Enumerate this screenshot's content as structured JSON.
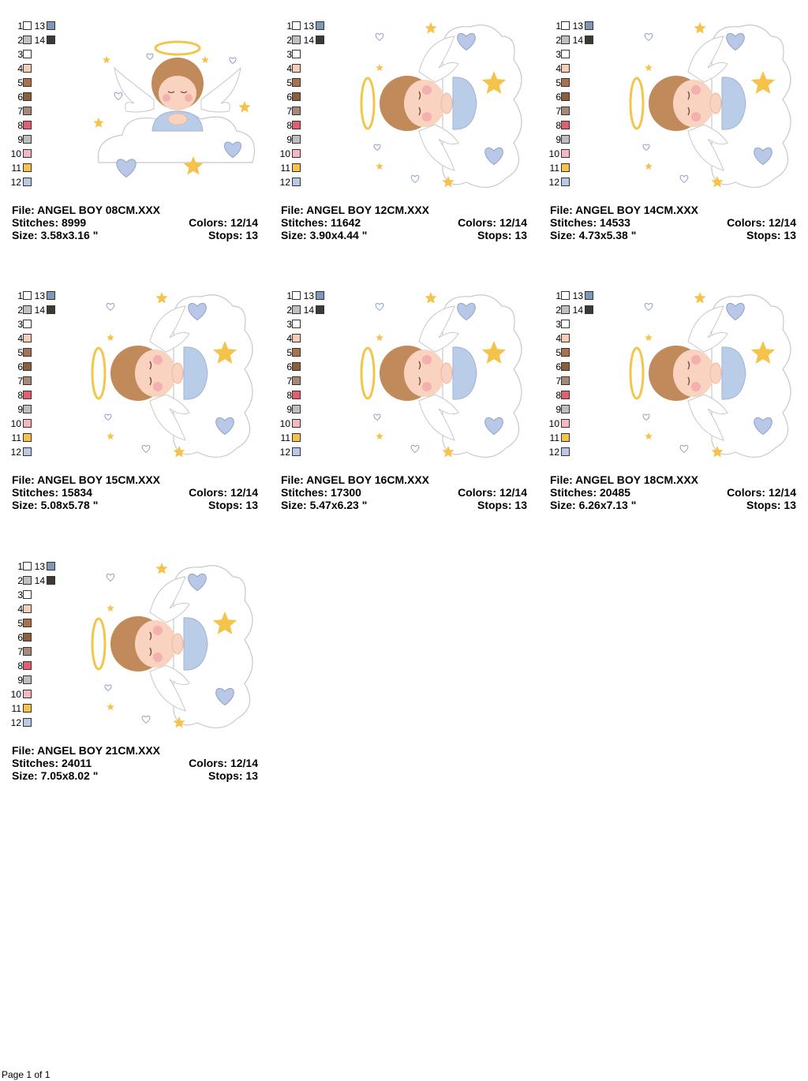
{
  "labels": {
    "file": "File: ",
    "stitches": "Stitches: ",
    "size": "Size: ",
    "colors": "Colors: ",
    "stops": "Stops: "
  },
  "palette": [
    {
      "n": "1",
      "color": "#ffffff"
    },
    {
      "n": "2",
      "color": "#c0c0c0"
    },
    {
      "n": "3",
      "color": "#ffffff"
    },
    {
      "n": "4",
      "color": "#f7cdb8"
    },
    {
      "n": "5",
      "color": "#a8724f"
    },
    {
      "n": "6",
      "color": "#8b5e3c"
    },
    {
      "n": "7",
      "color": "#a88878"
    },
    {
      "n": "8",
      "color": "#e06070"
    },
    {
      "n": "9",
      "color": "#bebebe"
    },
    {
      "n": "10",
      "color": "#f6b8c0"
    },
    {
      "n": "11",
      "color": "#f5c24a"
    },
    {
      "n": "12",
      "color": "#b8c8e6"
    }
  ],
  "palette_extra": [
    {
      "n": "13",
      "color": "#7d98b8"
    },
    {
      "n": "14",
      "color": "#3d3a33"
    }
  ],
  "art_colors": {
    "halo": "#f2c64a",
    "hair": "#c08a5a",
    "skin": "#f9d3c0",
    "cheek": "#f2a0a8",
    "shirt": "#b9cde9",
    "cloud": "#ffffff",
    "outline": "#c8c8c8",
    "star": "#f5c24a",
    "heart": "#b8c8e6",
    "wing": "#ffffff"
  },
  "designs": [
    {
      "file": "ANGEL BOY 08CM.XXX",
      "stitches": "8999",
      "size": "3.58x3.16 \"",
      "colors": "12/14",
      "stops": "13"
    },
    {
      "file": "ANGEL BOY 12CM.XXX",
      "stitches": "11642",
      "size": "3.90x4.44 \"",
      "colors": "12/14",
      "stops": "13"
    },
    {
      "file": "ANGEL BOY 14CM.XXX",
      "stitches": "14533",
      "size": "4.73x5.38 \"",
      "colors": "12/14",
      "stops": "13"
    },
    {
      "file": "ANGEL BOY 15CM.XXX",
      "stitches": "15834",
      "size": "5.08x5.78 \"",
      "colors": "12/14",
      "stops": "13"
    },
    {
      "file": "ANGEL BOY 16CM.XXX",
      "stitches": "17300",
      "size": "5.47x6.23 \"",
      "colors": "12/14",
      "stops": "13"
    },
    {
      "file": "ANGEL BOY 18CM.XXX",
      "stitches": "20485",
      "size": "6.26x7.13 \"",
      "colors": "12/14",
      "stops": "13"
    },
    {
      "file": "ANGEL BOY 21CM.XXX",
      "stitches": "24011",
      "size": "7.05x8.02 \"",
      "colors": "12/14",
      "stops": "13"
    }
  ],
  "footer": "Page 1 of 1"
}
